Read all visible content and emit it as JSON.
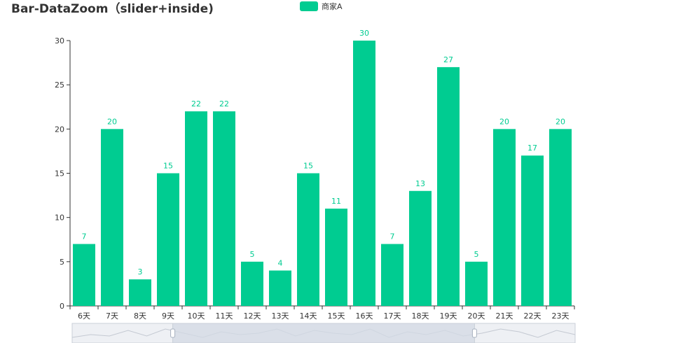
{
  "chart_data": {
    "type": "bar",
    "title": "Bar-DataZoom（slider+inside)",
    "legend": [
      "商家A"
    ],
    "categories": [
      "6天",
      "7天",
      "8天",
      "9天",
      "10天",
      "11天",
      "12天",
      "13天",
      "14天",
      "15天",
      "16天",
      "17天",
      "18天",
      "19天",
      "20天",
      "21天",
      "22天",
      "23天"
    ],
    "series": [
      {
        "name": "商家A",
        "values": [
          7,
          20,
          3,
          15,
          22,
          22,
          5,
          4,
          15,
          11,
          30,
          7,
          13,
          27,
          5,
          20,
          17,
          20
        ]
      }
    ],
    "ylim": [
      0,
      30
    ],
    "yticks": [
      0,
      5,
      10,
      15,
      20,
      25,
      30
    ],
    "xlabel": "",
    "ylabel": "",
    "legend_position": "top-center",
    "data_labels": true,
    "datazoom": {
      "type": "slider+inside",
      "start_percent": 20,
      "end_percent": 80,
      "overview_values": [
        3,
        5,
        4,
        8,
        4,
        9,
        6,
        3,
        7,
        5,
        6,
        9,
        4,
        8,
        6,
        5,
        9,
        3,
        7,
        5,
        8,
        4,
        6,
        9,
        7,
        3,
        8,
        5
      ]
    }
  },
  "colors": {
    "bar": "#00cc91",
    "label": "#00cc91",
    "axis": "#333333",
    "title": "#333333",
    "slider_selected": "#d3d9e4",
    "slider_bg": "#eef0f4",
    "slider_border": "#c9cfd8",
    "overview_line": "#c4c9d2"
  }
}
